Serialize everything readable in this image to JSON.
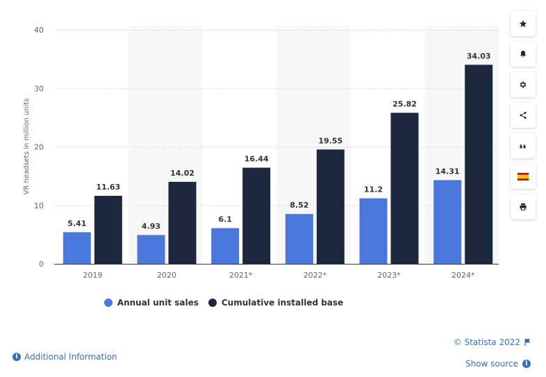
{
  "chart_data": {
    "type": "bar",
    "categories": [
      "2019",
      "2020",
      "2021*",
      "2022*",
      "2023*",
      "2024*"
    ],
    "series": [
      {
        "name": "Annual unit sales",
        "color": "#4a77dc",
        "values": [
          5.41,
          4.93,
          6.1,
          8.52,
          11.2,
          14.31
        ]
      },
      {
        "name": "Cumulative installed base",
        "color": "#1b2840",
        "values": [
          11.63,
          14.02,
          16.44,
          19.55,
          25.82,
          34.03
        ]
      }
    ],
    "data_labels": [
      [
        "5.41",
        "4.93",
        "6.1",
        "8.52",
        "11.2",
        "14.31"
      ],
      [
        "11.63",
        "14.02",
        "16.44",
        "19.55",
        "25.82",
        "34.03"
      ]
    ],
    "ylabel": "VR headsets in million units",
    "ylim": [
      0,
      40
    ],
    "yticks": [
      "0",
      "10",
      "20",
      "30",
      "40"
    ],
    "grid": true,
    "alternate_column_shading": true,
    "legend_placement": "bottom"
  },
  "legend": {
    "items": [
      {
        "label": "Annual unit sales",
        "color": "#4a77dc"
      },
      {
        "label": "Cumulative installed base",
        "color": "#1b2840"
      }
    ]
  },
  "toolbar": {
    "buttons": [
      {
        "icon": "star-icon"
      },
      {
        "icon": "bell-icon"
      },
      {
        "icon": "gear-icon"
      },
      {
        "icon": "share-icon"
      },
      {
        "icon": "quote-icon"
      },
      {
        "icon": "spain-flag-icon"
      },
      {
        "icon": "print-icon"
      }
    ]
  },
  "footer": {
    "additional_info": "Additional Information",
    "copyright": "© Statista 2022",
    "show_source": "Show source"
  }
}
